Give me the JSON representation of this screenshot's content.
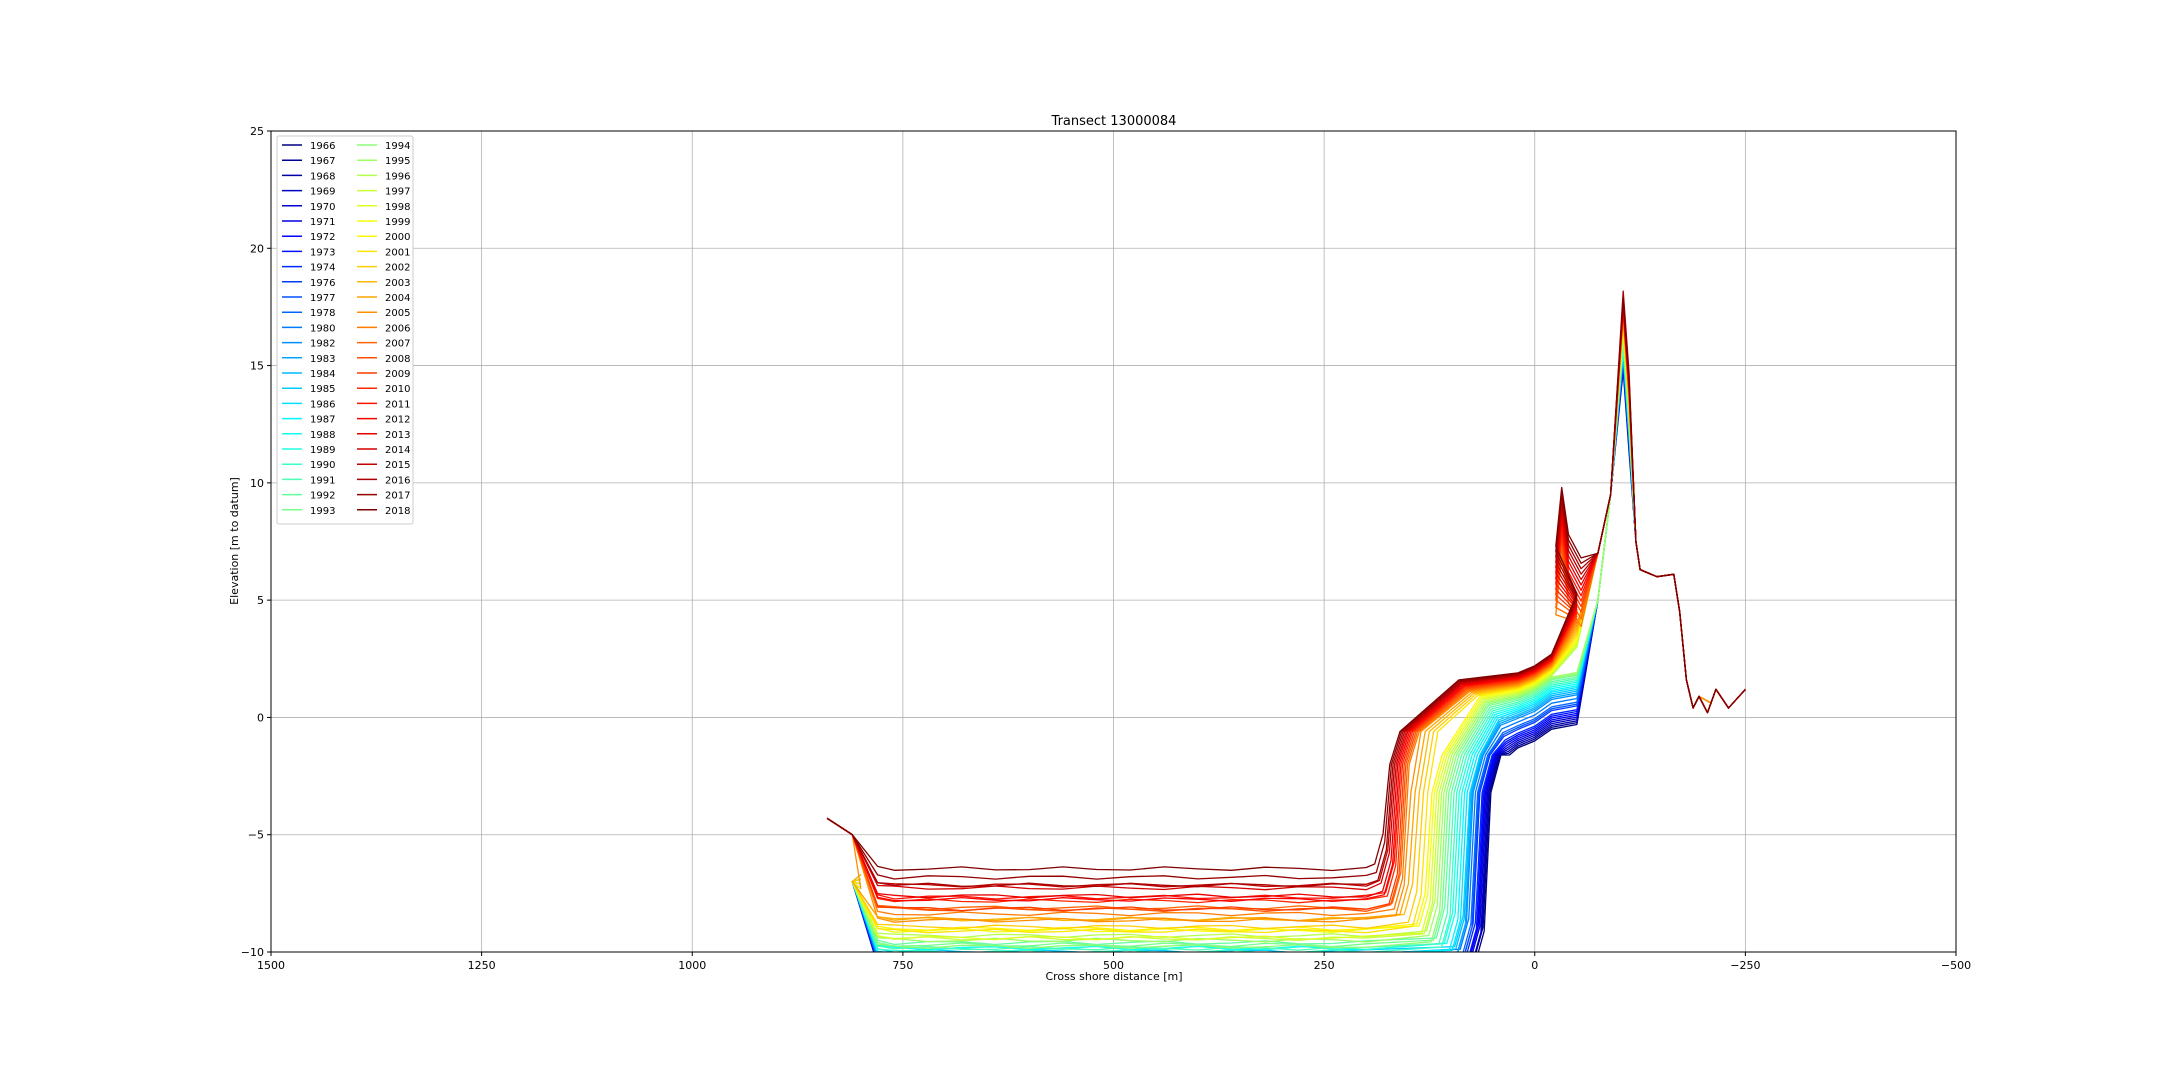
{
  "chart_data": {
    "type": "line",
    "title": "Transect 13000084",
    "xlabel": "Cross shore distance [m]",
    "ylabel": "Elevation [m to datum]",
    "xlim": [
      1500,
      -500
    ],
    "ylim": [
      -10,
      25
    ],
    "x_ticks": [
      1500,
      1250,
      1000,
      750,
      500,
      250,
      0,
      -250,
      -500
    ],
    "x_tick_labels": [
      "1500",
      "1250",
      "1000",
      "750",
      "500",
      "250",
      "0",
      "−250",
      "−500"
    ],
    "y_ticks": [
      -10,
      -5,
      0,
      5,
      10,
      15,
      20,
      25
    ],
    "y_tick_labels": [
      "−10",
      "−5",
      "0",
      "5",
      "10",
      "15",
      "20",
      "25"
    ],
    "grid": true,
    "legend_placement": "top-left",
    "legend_columns": 2,
    "colormap": "jet",
    "series_names": [
      "1966",
      "1967",
      "1968",
      "1969",
      "1970",
      "1971",
      "1972",
      "1973",
      "1974",
      "1976",
      "1977",
      "1978",
      "1980",
      "1982",
      "1983",
      "1984",
      "1985",
      "1986",
      "1987",
      "1988",
      "1989",
      "1990",
      "1991",
      "1992",
      "1993",
      "1994",
      "1995",
      "1996",
      "1997",
      "1998",
      "1999",
      "2000",
      "2001",
      "2002",
      "2003",
      "2004",
      "2005",
      "2006",
      "2007",
      "2008",
      "2009",
      "2010",
      "2011",
      "2012",
      "2013",
      "2014",
      "2015",
      "2016",
      "2017",
      "2018"
    ],
    "profile_shape": {
      "note_free_param_sea_offset": [
        1500,
        750
      ],
      "sea_floor_levels_by_year": {
        "1966": -10.5,
        "1985": -10.0,
        "1993": -9.6,
        "2000": -9.0,
        "2005": -8.4,
        "2010": -7.9,
        "2014": -7.4,
        "2018": -6.6
      },
      "dune_crest": {
        "x": -105,
        "y_1966": 15.5,
        "y_2018": 18.0
      },
      "foredune_2018": {
        "x": 30,
        "y": 9.9
      },
      "beach_2018": {
        "x": 130,
        "y": 1.7
      },
      "back_dune_level": {
        "x": -170,
        "y": 6.0
      },
      "landward_end": {
        "x": -250,
        "y": 1.2
      }
    }
  }
}
